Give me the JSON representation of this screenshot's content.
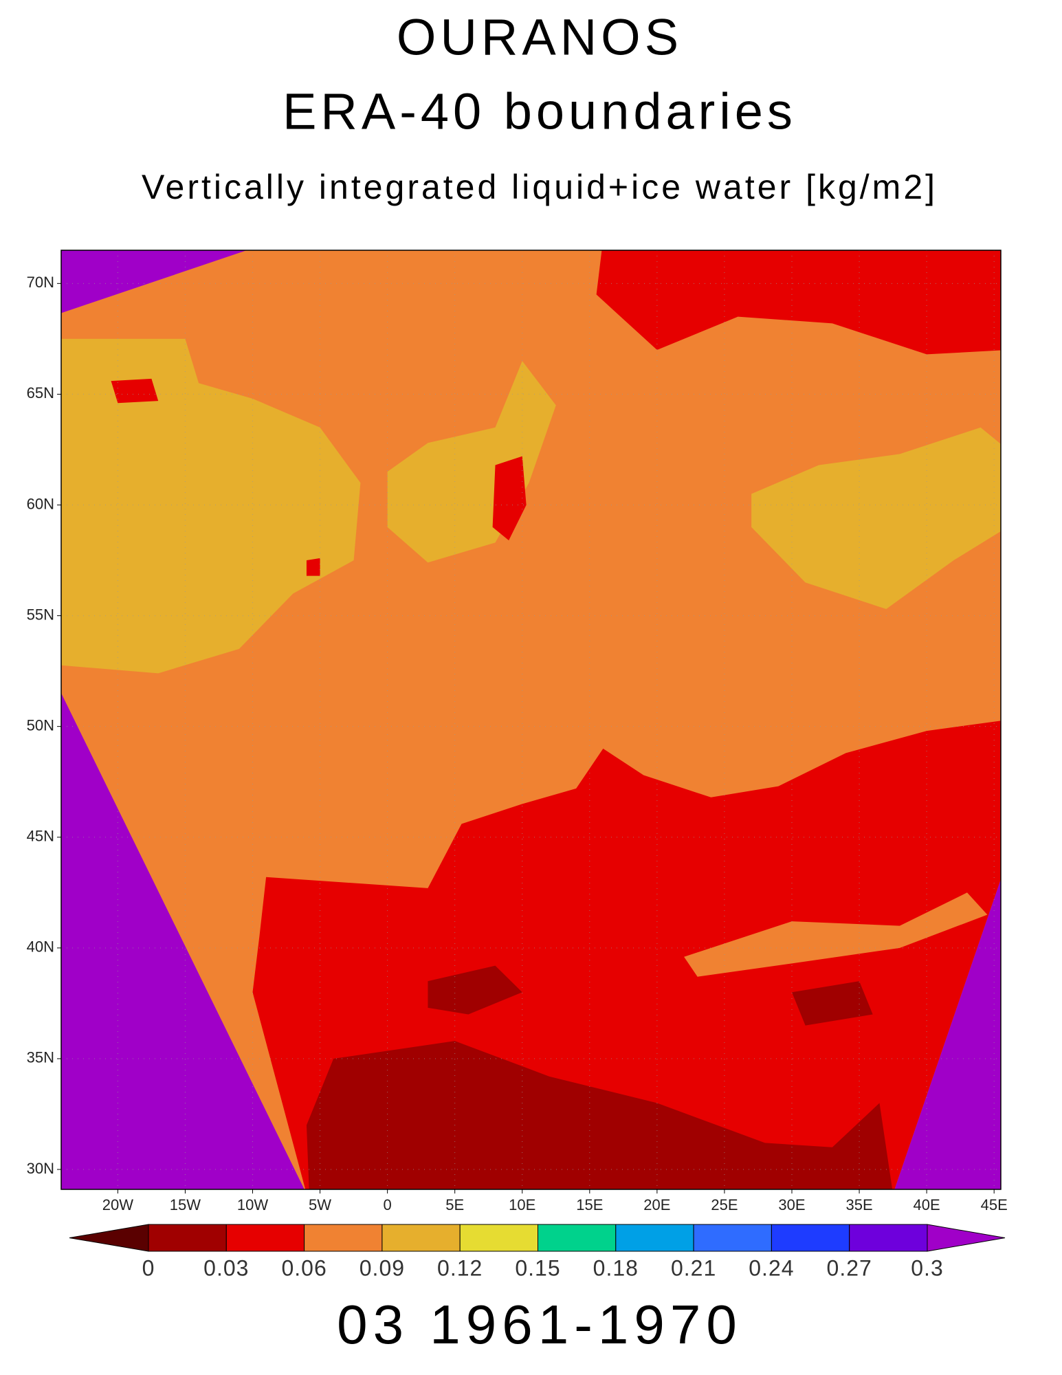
{
  "chart_data": {
    "type": "contour-map",
    "title": "OURANOS",
    "subtitle": "ERA-40 boundaries",
    "variable": "Vertically integrated liquid+ice water [kg/m2]",
    "footer": "03 1961-1970",
    "xlim": [
      -24.2,
      45.5
    ],
    "ylim": [
      29.1,
      71.5
    ],
    "xticks": [
      {
        "value": -20,
        "label": "20W"
      },
      {
        "value": -15,
        "label": "15W"
      },
      {
        "value": -10,
        "label": "10W"
      },
      {
        "value": -5,
        "label": "5W"
      },
      0,
      {
        "value": 5,
        "label": "5E"
      },
      {
        "value": 10,
        "label": "10E"
      },
      {
        "value": 15,
        "label": "15E"
      },
      {
        "value": 20,
        "label": "20E"
      },
      {
        "value": 25,
        "label": "25E"
      },
      {
        "value": 30,
        "label": "30E"
      },
      {
        "value": 35,
        "label": "35E"
      },
      {
        "value": 40,
        "label": "40E"
      },
      {
        "value": 45,
        "label": "45E"
      }
    ],
    "yticks": [
      {
        "value": 30,
        "label": "30N"
      },
      {
        "value": 35,
        "label": "35N"
      },
      {
        "value": 40,
        "label": "40N"
      },
      {
        "value": 45,
        "label": "45N"
      },
      {
        "value": 50,
        "label": "50N"
      },
      {
        "value": 55,
        "label": "55N"
      },
      {
        "value": 60,
        "label": "60N"
      },
      {
        "value": 65,
        "label": "65N"
      },
      {
        "value": 70,
        "label": "70N"
      }
    ],
    "grid": true,
    "colorbar": {
      "levels": [
        0,
        0.03,
        0.06,
        0.09,
        0.12,
        0.15,
        0.18,
        0.21,
        0.24,
        0.27,
        0.3
      ],
      "colors": [
        "#5a0000",
        "#a00000",
        "#e60000",
        "#f08232",
        "#e6af2d",
        "#e6dc32",
        "#00d28c",
        "#00a0e6",
        "#2f6cff",
        "#1e3cff",
        "#6e00dc",
        "#a000c8"
      ]
    }
  }
}
